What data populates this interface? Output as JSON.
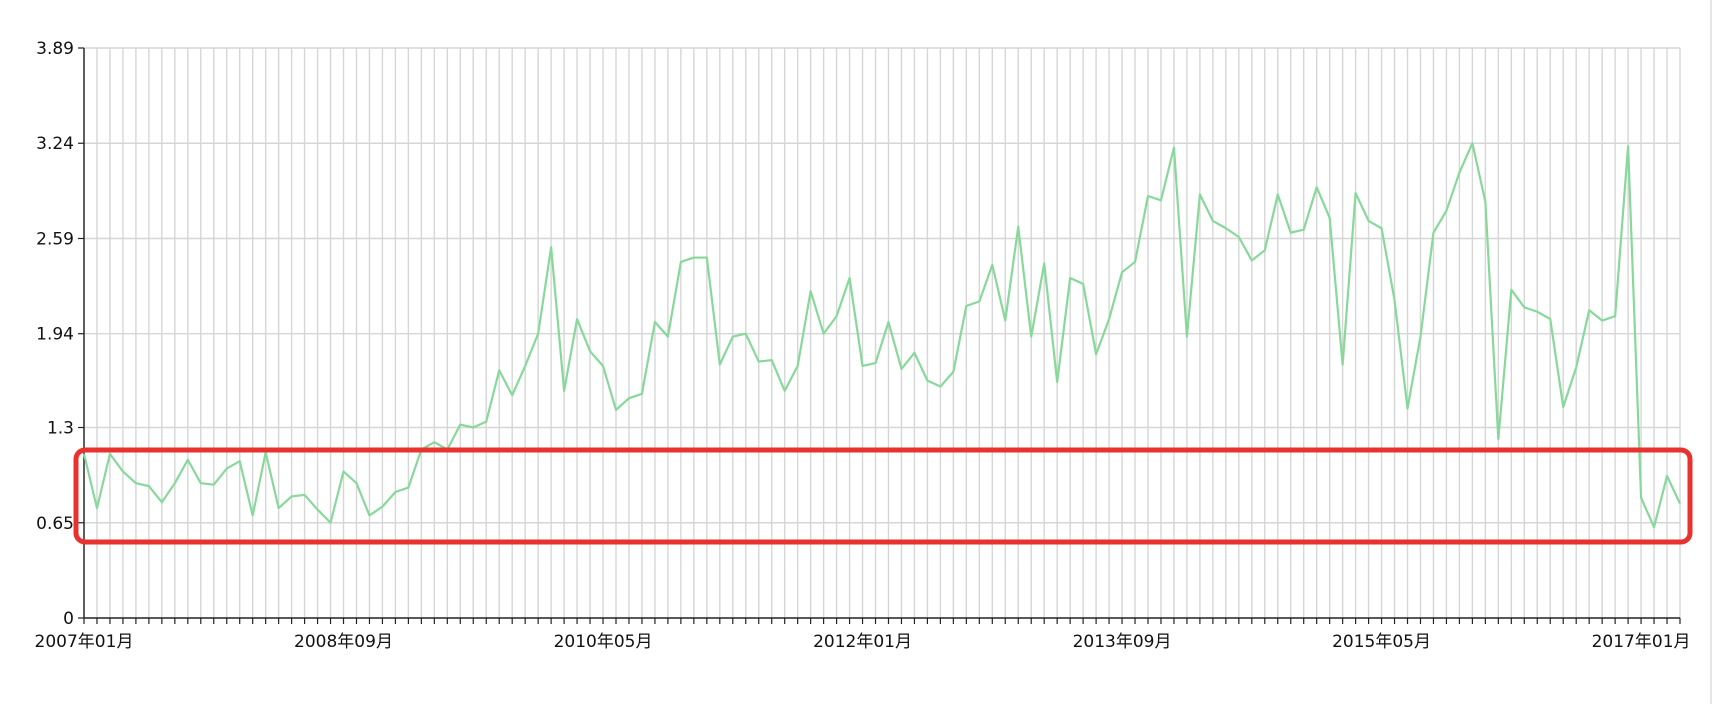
{
  "chart_data": {
    "type": "line",
    "title": "",
    "xlabel": "",
    "ylabel": "",
    "ylim": [
      0,
      3.89
    ],
    "yticks": [
      0,
      0.65,
      1.3,
      1.94,
      2.59,
      3.24,
      3.89
    ],
    "ytick_labels": [
      "0",
      "0.65",
      "1.3",
      "1.94",
      "2.59",
      "3.24",
      "3.89"
    ],
    "xtick_labels": [
      "2007年01月",
      "2008年09月",
      "2010年05月",
      "2012年01月",
      "2013年09月",
      "2015年05月",
      "2017年01月"
    ],
    "x_start": "2007-01",
    "grid": true,
    "series": [
      {
        "color": "#88d89b",
        "values": [
          1.12,
          0.75,
          1.12,
          1.0,
          0.92,
          0.9,
          0.79,
          0.92,
          1.08,
          0.92,
          0.91,
          1.02,
          1.07,
          0.7,
          1.13,
          0.75,
          0.83,
          0.84,
          0.74,
          0.65,
          1.0,
          0.92,
          0.7,
          0.76,
          0.86,
          0.89,
          1.15,
          1.2,
          1.15,
          1.32,
          1.3,
          1.34,
          1.69,
          1.52,
          1.72,
          1.94,
          2.53,
          1.55,
          2.04,
          1.82,
          1.72,
          1.42,
          1.5,
          1.53,
          2.02,
          1.92,
          2.43,
          2.46,
          2.46,
          1.73,
          1.92,
          1.94,
          1.75,
          1.76,
          1.55,
          1.72,
          2.23,
          1.94,
          2.06,
          2.32,
          1.72,
          1.74,
          2.02,
          1.7,
          1.81,
          1.62,
          1.58,
          1.68,
          2.13,
          2.16,
          2.41,
          2.03,
          2.67,
          1.92,
          2.42,
          1.61,
          2.32,
          2.28,
          1.8,
          2.04,
          2.36,
          2.43,
          2.88,
          2.85,
          3.21,
          1.92,
          2.89,
          2.71,
          2.66,
          2.6,
          2.44,
          2.51,
          2.89,
          2.63,
          2.65,
          2.94,
          2.73,
          1.73,
          2.9,
          2.71,
          2.66,
          2.17,
          1.43,
          1.92,
          2.63,
          2.78,
          3.04,
          3.24,
          2.84,
          1.22,
          2.24,
          2.12,
          2.09,
          2.04,
          1.44,
          1.71,
          2.1,
          2.03,
          2.06,
          3.22,
          0.82,
          0.62,
          0.97,
          0.78
        ]
      }
    ]
  }
}
